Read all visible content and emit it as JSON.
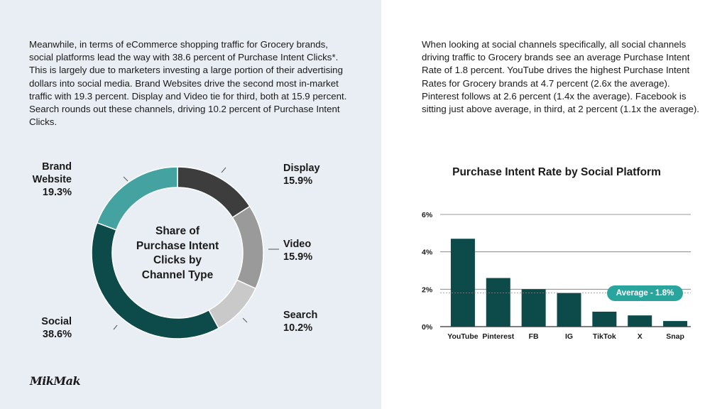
{
  "left_text": "Meanwhile, in terms of eCommerce shopping traffic for Grocery brands, social platforms lead the way with 38.6 percent of Purchase Intent Clicks*. This is largely due to marketers investing a large portion of their advertising dollars into social media. Brand Websites drive the second most in-market traffic with 19.3 percent. Display and Video tie for third, both at 15.9 percent. Search rounds out these channels, driving 10.2 percent of Purchase Intent Clicks.",
  "right_text": "When looking at social channels specifically, all social channels driving traffic to Grocery brands see an average Purchase Intent Rate of 1.8 percent. YouTube drives the highest Purchase Intent Rates for Grocery brands at 4.7 percent (2.6x the average). Pinterest follows at 2.6 percent (1.4x the average). Facebook is sitting just above average, in third, at 2 percent (1.1x the average).",
  "logo": "MikMak",
  "chart_data": [
    {
      "type": "pie",
      "title": "Share of Purchase Intent Clicks by Channel Type",
      "title_lines": [
        "Share of",
        "Purchase Intent",
        "Clicks by",
        "Channel Type"
      ],
      "slices": [
        {
          "label_lines": [
            "Display"
          ],
          "value": 15.9,
          "display": "15.9%",
          "color": "#3d3d3d"
        },
        {
          "label_lines": [
            "Video"
          ],
          "value": 15.9,
          "display": "15.9%",
          "color": "#9a9a9a"
        },
        {
          "label_lines": [
            "Search"
          ],
          "value": 10.2,
          "display": "10.2%",
          "color": "#c9c9c9"
        },
        {
          "label_lines": [
            "Social"
          ],
          "value": 38.6,
          "display": "38.6%",
          "color": "#0d4a4a"
        },
        {
          "label_lines": [
            "Brand",
            "Website"
          ],
          "value": 19.3,
          "display": "19.3%",
          "color": "#44a3a0"
        }
      ]
    },
    {
      "type": "bar",
      "title": "Purchase Intent Rate by Social Platform",
      "categories": [
        "YouTube",
        "Pinterest",
        "FB",
        "IG",
        "TikTok",
        "X",
        "Snap"
      ],
      "values": [
        4.7,
        2.6,
        2.0,
        1.8,
        0.8,
        0.6,
        0.3
      ],
      "ylim": [
        0,
        6
      ],
      "yticks": [
        "0%",
        "2%",
        "4%",
        "6%"
      ],
      "grid": true,
      "bar_color": "#0d4a4a",
      "average": {
        "value": 1.8,
        "label": "Average - 1.8%",
        "color": "#2aa59e"
      }
    }
  ]
}
